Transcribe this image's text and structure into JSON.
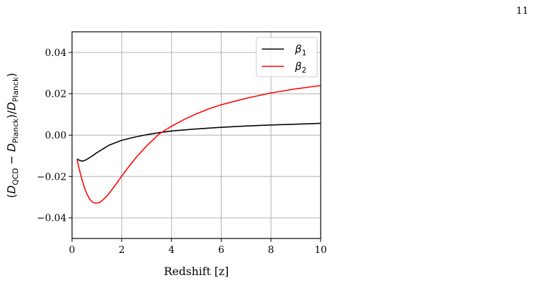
{
  "page": {
    "number": "11"
  },
  "chart_data": {
    "type": "line",
    "title": "",
    "xlabel": "Redshift [z]",
    "ylabel": {
      "pre": "(",
      "D1": "D",
      "sub1": "QCD",
      "minus": " − ",
      "D2": "D",
      "sub2": "Planck",
      "mid": ")/",
      "D3": "D",
      "sub3": "Planck",
      "post": ")"
    },
    "xlim": [
      0,
      10
    ],
    "ylim": [
      -0.05,
      0.05
    ],
    "xticks": [
      0,
      2,
      4,
      6,
      8,
      10
    ],
    "xtick_labels": [
      "0",
      "2",
      "4",
      "6",
      "8",
      "10"
    ],
    "yticks": [
      -0.04,
      -0.02,
      0.0,
      0.02,
      0.04
    ],
    "ytick_labels": [
      "−0.04",
      "−0.02",
      "0.00",
      "0.02",
      "0.04"
    ],
    "grid": true,
    "legend_position": "top-right",
    "series": [
      {
        "name": "β",
        "name_sub": "1",
        "color": "#000000",
        "x": [
          0.2,
          0.3,
          0.4,
          0.5,
          0.7,
          1.0,
          1.5,
          2.0,
          2.5,
          3.0,
          3.5,
          4.0,
          5.0,
          6.0,
          7.0,
          8.0,
          9.0,
          10.0
        ],
        "y": [
          -0.0115,
          -0.0122,
          -0.0126,
          -0.0123,
          -0.011,
          -0.0085,
          -0.0048,
          -0.0025,
          -0.001,
          0.0002,
          0.0012,
          0.002,
          0.003,
          0.0038,
          0.0044,
          0.0049,
          0.0053,
          0.0057
        ]
      },
      {
        "name": "β",
        "name_sub": "2",
        "color": "#ff0000",
        "x": [
          0.2,
          0.3,
          0.4,
          0.5,
          0.6,
          0.7,
          0.8,
          0.9,
          1.0,
          1.1,
          1.2,
          1.4,
          1.6,
          1.8,
          2.0,
          2.3,
          2.6,
          3.0,
          3.5,
          3.8,
          4.0,
          4.5,
          5.0,
          5.5,
          6.0,
          7.0,
          8.0,
          9.0,
          10.0
        ],
        "y": [
          -0.0118,
          -0.017,
          -0.0215,
          -0.0255,
          -0.0285,
          -0.0308,
          -0.0322,
          -0.0328,
          -0.0329,
          -0.0326,
          -0.0318,
          -0.0295,
          -0.0265,
          -0.0232,
          -0.0198,
          -0.015,
          -0.0105,
          -0.0052,
          0.0005,
          0.0028,
          0.0043,
          0.0075,
          0.0103,
          0.0127,
          0.0147,
          0.0178,
          0.0204,
          0.0224,
          0.024
        ]
      }
    ]
  }
}
